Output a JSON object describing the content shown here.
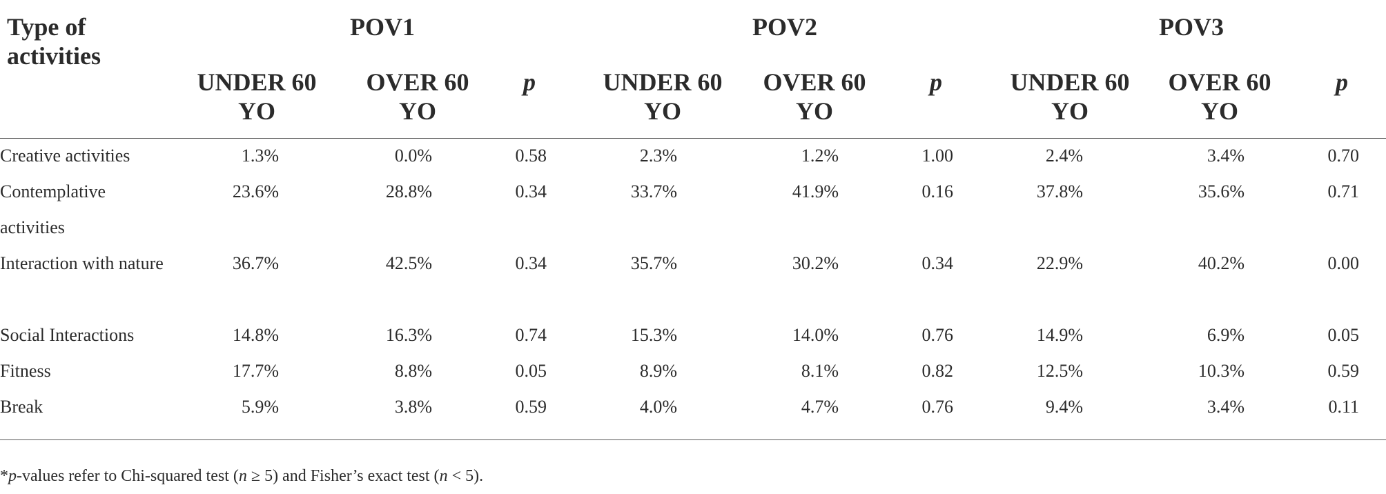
{
  "header": {
    "row_label": "Type of activities",
    "groups": [
      "POV1",
      "POV2",
      "POV3"
    ],
    "subcolumns": [
      "UNDER 60 YO",
      "OVER 60 YO",
      "p"
    ]
  },
  "rows": [
    {
      "label": "Creative activities",
      "values": [
        "1.3%",
        "0.0%",
        "0.58",
        "2.3%",
        "1.2%",
        "1.00",
        "2.4%",
        "3.4%",
        "0.70"
      ]
    },
    {
      "label": "Contemplative activities",
      "values": [
        "23.6%",
        "28.8%",
        "0.34",
        "33.7%",
        "41.9%",
        "0.16",
        "37.8%",
        "35.6%",
        "0.71"
      ]
    },
    {
      "label": "Interaction with nature",
      "values": [
        "36.7%",
        "42.5%",
        "0.34",
        "35.7%",
        "30.2%",
        "0.34",
        "22.9%",
        "40.2%",
        "0.00"
      ]
    },
    {
      "label": "Social Interactions",
      "values": [
        "14.8%",
        "16.3%",
        "0.74",
        "15.3%",
        "14.0%",
        "0.76",
        "14.9%",
        "6.9%",
        "0.05"
      ]
    },
    {
      "label": "Fitness",
      "values": [
        "17.7%",
        "8.8%",
        "0.05",
        "8.9%",
        "8.1%",
        "0.82",
        "12.5%",
        "10.3%",
        "0.59"
      ]
    },
    {
      "label": "Break",
      "values": [
        "5.9%",
        "3.8%",
        "0.59",
        "4.0%",
        "4.7%",
        "0.76",
        "9.4%",
        "3.4%",
        "0.11"
      ]
    }
  ],
  "footnote": {
    "star": "*",
    "p": "p",
    "text1": "-values refer to Chi-squared test (",
    "n1": "n",
    "cond1": " ≥ 5) and Fisher’s exact test (",
    "n2": "n",
    "cond2": " < 5)."
  }
}
